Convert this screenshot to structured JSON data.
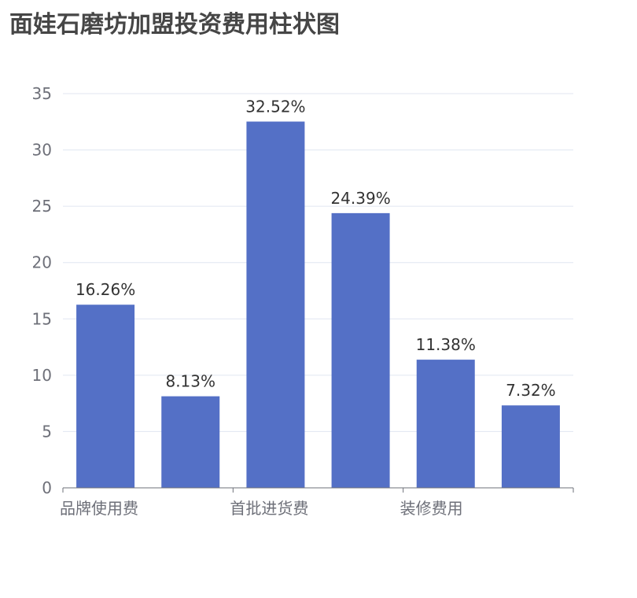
{
  "title": "面娃石磨坊加盟投资费用柱状图",
  "chart_data": {
    "type": "bar",
    "title": "面娃石磨坊加盟投资费用柱状图",
    "categories": [
      "品牌使用费",
      "",
      "首批进货费",
      "",
      "装修费用",
      ""
    ],
    "values": [
      16.26,
      8.13,
      32.52,
      24.39,
      11.38,
      7.32
    ],
    "data_labels": [
      "16.26%",
      "8.13%",
      "32.52%",
      "24.39%",
      "11.38%",
      "7.32%"
    ],
    "ylim": [
      0,
      35
    ],
    "yticks": [
      0,
      5,
      10,
      15,
      20,
      25,
      30,
      35
    ],
    "grid": true,
    "colors": {
      "bar": "#5470c6",
      "grid": "#e0e6f1",
      "axis": "#6e7079"
    }
  }
}
